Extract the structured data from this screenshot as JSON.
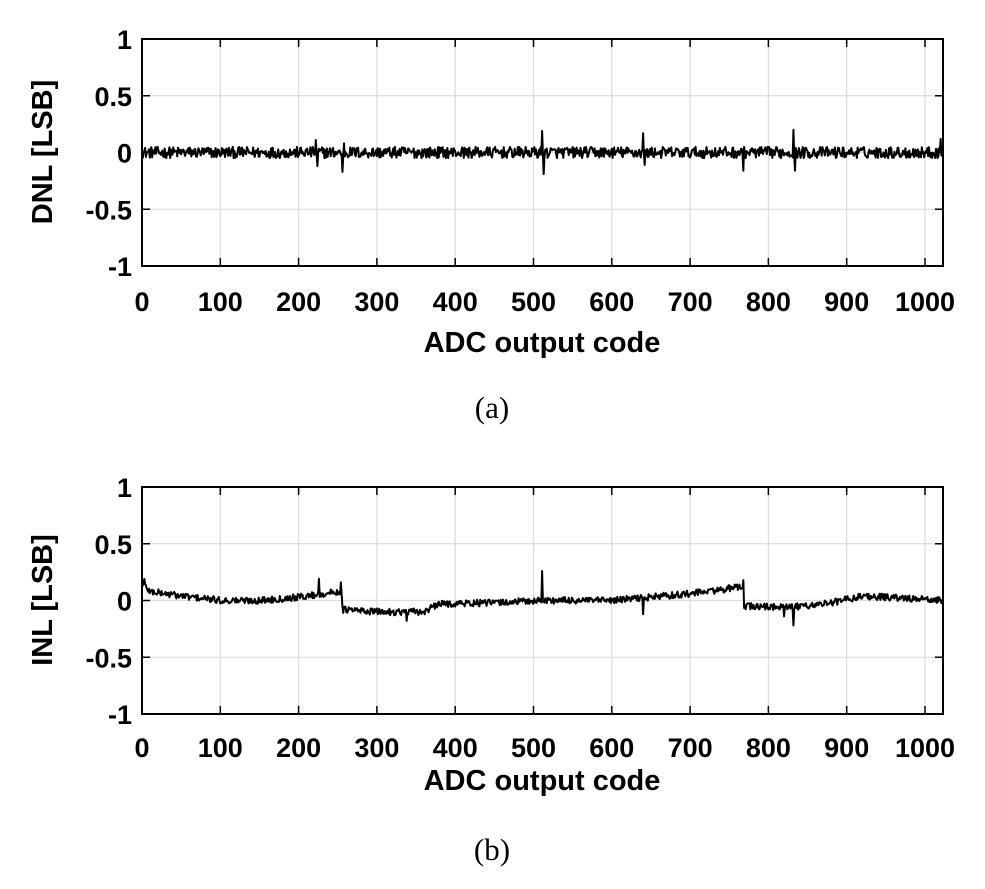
{
  "chart_data": [
    {
      "type": "line",
      "id": "dnl",
      "xlabel": "ADC output code",
      "ylabel": "DNL [LSB]",
      "caption": "(a)",
      "xlim": [
        0,
        1023
      ],
      "ylim": [
        -1,
        1
      ],
      "xticks": [
        0,
        100,
        200,
        300,
        400,
        500,
        600,
        700,
        800,
        900,
        1000
      ],
      "xtick_labels": [
        "0",
        "100",
        "200",
        "300",
        "400",
        "500",
        "600",
        "700",
        "800",
        "900",
        "1000"
      ],
      "yticks": [
        1,
        0.5,
        0,
        -0.5,
        -1
      ],
      "ytick_labels": [
        "1",
        "0.5",
        "0",
        "-0.5",
        "-1"
      ],
      "grid": true,
      "color": "#000000",
      "series": [
        {
          "noise_amplitude": 0.05,
          "spikes": [
            {
              "x": 222,
              "y": 0.11
            },
            {
              "x": 224,
              "y": -0.12
            },
            {
              "x": 256,
              "y": -0.17
            },
            {
              "x": 258,
              "y": 0.08
            },
            {
              "x": 511,
              "y": 0.19
            },
            {
              "x": 513,
              "y": -0.19
            },
            {
              "x": 640,
              "y": 0.17
            },
            {
              "x": 642,
              "y": -0.11
            },
            {
              "x": 768,
              "y": -0.16
            },
            {
              "x": 832,
              "y": 0.2
            },
            {
              "x": 834,
              "y": -0.16
            },
            {
              "x": 1020,
              "y": 0.12
            }
          ]
        }
      ]
    },
    {
      "type": "line",
      "id": "inl",
      "xlabel": "ADC output code",
      "ylabel": "INL [LSB]",
      "caption": "(b)",
      "xlim": [
        0,
        1023
      ],
      "ylim": [
        -1,
        1
      ],
      "xticks": [
        0,
        100,
        200,
        300,
        400,
        500,
        600,
        700,
        800,
        900,
        1000
      ],
      "xtick_labels": [
        "0",
        "100",
        "200",
        "300",
        "400",
        "500",
        "600",
        "700",
        "800",
        "900",
        "1000"
      ],
      "yticks": [
        1,
        0.5,
        0,
        -0.5,
        -1
      ],
      "ytick_labels": [
        "1",
        "0.5",
        "0",
        "-0.5",
        "-1"
      ],
      "grid": true,
      "color": "#000000",
      "series": [
        {
          "noise_amplitude": 0.03,
          "trend": [
            {
              "x": 0,
              "y": 0.16
            },
            {
              "x": 10,
              "y": 0.08
            },
            {
              "x": 50,
              "y": 0.04
            },
            {
              "x": 100,
              "y": 0.0
            },
            {
              "x": 150,
              "y": 0.0
            },
            {
              "x": 200,
              "y": 0.03
            },
            {
              "x": 255,
              "y": 0.08
            },
            {
              "x": 256,
              "y": -0.08
            },
            {
              "x": 300,
              "y": -0.1
            },
            {
              "x": 360,
              "y": -0.1
            },
            {
              "x": 380,
              "y": -0.03
            },
            {
              "x": 450,
              "y": -0.02
            },
            {
              "x": 510,
              "y": 0.0
            },
            {
              "x": 600,
              "y": 0.0
            },
            {
              "x": 700,
              "y": 0.06
            },
            {
              "x": 767,
              "y": 0.12
            },
            {
              "x": 768,
              "y": -0.05
            },
            {
              "x": 830,
              "y": -0.06
            },
            {
              "x": 880,
              "y": -0.02
            },
            {
              "x": 920,
              "y": 0.04
            },
            {
              "x": 1023,
              "y": 0.0
            }
          ],
          "spikes": [
            {
              "x": 3,
              "y": 0.19
            },
            {
              "x": 226,
              "y": 0.19
            },
            {
              "x": 254,
              "y": 0.16
            },
            {
              "x": 338,
              "y": -0.18
            },
            {
              "x": 511,
              "y": 0.26
            },
            {
              "x": 640,
              "y": -0.12
            },
            {
              "x": 768,
              "y": 0.18
            },
            {
              "x": 820,
              "y": -0.14
            },
            {
              "x": 832,
              "y": -0.22
            }
          ]
        }
      ]
    }
  ]
}
